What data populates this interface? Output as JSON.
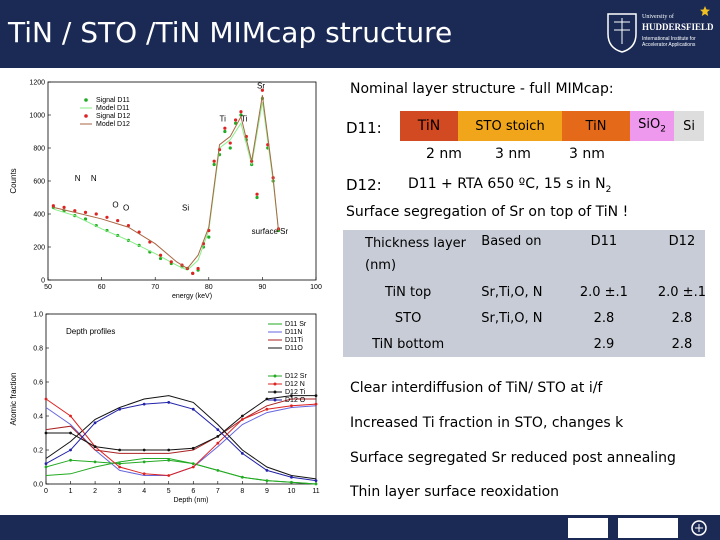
{
  "title": "TiN / STO /TiN MIMcap structure",
  "logo": {
    "line1": "University of",
    "line2": "HUDDERSFIELD",
    "line3": "International Institute for Accelerator Applications"
  },
  "nominal": {
    "heading": "Nominal layer structure - full MIMcap:",
    "d11_label": "D11:",
    "d12_label": "D12:",
    "layers": [
      "TiN",
      "STO stoich",
      "TiN",
      "SiO",
      "Si"
    ],
    "sio2_sub": "2",
    "thicknesses": [
      "2 nm",
      "3 nm",
      "3 nm"
    ],
    "d12_desc": "D11 + RTA 650 ºC, 15 s in N",
    "d12_sub": "2",
    "segregation": "Surface segregation of Sr on top of TiN !"
  },
  "table": {
    "headers": [
      "Thickness layer (nm)",
      "Based on",
      "D11",
      "D12"
    ],
    "rows": [
      [
        "TiN top",
        "Sr,Ti,O, N",
        "2.0 ±.1",
        "2.0 ±.1"
      ],
      [
        "STO",
        "Sr,Ti,O, N",
        "2.8",
        "2.8"
      ],
      [
        "TiN bottom",
        "",
        "2.9",
        "2.8"
      ]
    ]
  },
  "bullets": [
    "Clear interdiffusion of TiN/ STO at i/f",
    "Increased Ti fraction in STO, changes k",
    "Surface segregated Sr reduced post annealing",
    "Thin layer surface reoxidation"
  ],
  "chart_data": [
    {
      "type": "scatter",
      "xlabel": "energy (keV)",
      "ylabel": "Counts",
      "xlim": [
        50,
        100
      ],
      "ylim": [
        0,
        1200
      ],
      "xticks": [
        50,
        60,
        70,
        80,
        90,
        100
      ],
      "yticks": [
        0,
        200,
        400,
        600,
        800,
        1000,
        1200
      ],
      "legend": [
        "Signal D11",
        "Model D11",
        "Signal D12",
        "Model D12"
      ],
      "legend_position": "top-left",
      "annotations": [
        "N",
        "N",
        "O",
        "O",
        "Si",
        "Ti",
        "Ti",
        "Sr",
        "surface Sr"
      ],
      "series": [
        {
          "name": "Signal D11",
          "color": "#22aa22",
          "x": [
            51,
            53,
            55,
            57,
            59,
            61,
            63,
            65,
            67,
            69,
            71,
            73,
            75,
            76,
            77,
            78,
            79,
            80,
            81,
            82,
            83,
            84,
            85,
            86,
            87,
            88,
            89,
            90,
            91,
            92,
            93
          ],
          "y": [
            440,
            420,
            390,
            370,
            330,
            300,
            270,
            240,
            210,
            170,
            130,
            100,
            80,
            70,
            40,
            60,
            200,
            260,
            700,
            760,
            900,
            800,
            950,
            1000,
            850,
            700,
            500,
            1100,
            800,
            600,
            300
          ]
        },
        {
          "name": "Model D11",
          "color": "#88ee88",
          "x": [
            51,
            55,
            60,
            65,
            70,
            74,
            76,
            78,
            80,
            82,
            84,
            86,
            88,
            90,
            92,
            93
          ],
          "y": [
            430,
            390,
            310,
            240,
            160,
            90,
            60,
            120,
            300,
            800,
            850,
            950,
            700,
            1080,
            600,
            300
          ]
        },
        {
          "name": "Signal D12",
          "color": "#dd2222",
          "x": [
            51,
            53,
            55,
            57,
            59,
            61,
            63,
            65,
            67,
            69,
            71,
            73,
            75,
            76,
            77,
            78,
            79,
            80,
            81,
            82,
            83,
            84,
            85,
            86,
            87,
            88,
            89,
            90,
            91,
            92,
            93
          ],
          "y": [
            450,
            440,
            420,
            410,
            400,
            380,
            360,
            330,
            290,
            230,
            150,
            110,
            90,
            70,
            40,
            70,
            220,
            300,
            720,
            790,
            920,
            830,
            970,
            1020,
            870,
            720,
            520,
            1150,
            820,
            620,
            310
          ]
        },
        {
          "name": "Model D12",
          "color": "#aa6644",
          "x": [
            51,
            55,
            60,
            65,
            70,
            74,
            76,
            78,
            80,
            82,
            84,
            86,
            88,
            90,
            92,
            93
          ],
          "y": [
            440,
            410,
            370,
            320,
            220,
            110,
            70,
            150,
            320,
            820,
            870,
            990,
            720,
            1120,
            620,
            300
          ]
        }
      ]
    },
    {
      "type": "line",
      "title": "Depth profiles",
      "xlabel": "Depth (nm)",
      "ylabel": "Atomic fraction",
      "xlim": [
        0,
        11
      ],
      "ylim": [
        0,
        1.0
      ],
      "xticks": [
        0,
        1,
        2,
        3,
        4,
        5,
        6,
        7,
        8,
        9,
        10,
        11
      ],
      "yticks": [
        0.0,
        0.2,
        0.4,
        0.6,
        0.8,
        1.0
      ],
      "legend_position": "top-right",
      "series": [
        {
          "name": "D11 Sr",
          "color": "#22aa22",
          "x": [
            0,
            1,
            2,
            3,
            4,
            5,
            6,
            7,
            8,
            9,
            10,
            11
          ],
          "y": [
            0.05,
            0.06,
            0.1,
            0.13,
            0.15,
            0.15,
            0.12,
            0.08,
            0.04,
            0.02,
            0.01,
            0.0
          ]
        },
        {
          "name": "D11N",
          "color": "#6666dd",
          "x": [
            0,
            1,
            2,
            3,
            4,
            5,
            6,
            7,
            8,
            9,
            10,
            11
          ],
          "y": [
            0.45,
            0.35,
            0.2,
            0.08,
            0.05,
            0.05,
            0.1,
            0.22,
            0.35,
            0.42,
            0.45,
            0.46
          ]
        },
        {
          "name": "D11Ti",
          "color": "#aa2222",
          "x": [
            0,
            1,
            2,
            3,
            4,
            5,
            6,
            7,
            8,
            9,
            10,
            11
          ],
          "y": [
            0.32,
            0.34,
            0.2,
            0.18,
            0.18,
            0.18,
            0.2,
            0.28,
            0.38,
            0.46,
            0.5,
            0.5
          ]
        },
        {
          "name": "D11O",
          "color": "#111111",
          "x": [
            0,
            1,
            2,
            3,
            4,
            5,
            6,
            7,
            8,
            9,
            10,
            11
          ],
          "y": [
            0.15,
            0.25,
            0.38,
            0.45,
            0.5,
            0.52,
            0.48,
            0.35,
            0.2,
            0.1,
            0.05,
            0.03
          ]
        },
        {
          "name": "D12 Sr",
          "color": "#22aa22",
          "x": [
            0,
            1,
            2,
            3,
            4,
            5,
            6,
            7,
            8,
            9,
            10,
            11
          ],
          "y": [
            0.1,
            0.14,
            0.13,
            0.12,
            0.13,
            0.14,
            0.12,
            0.08,
            0.04,
            0.02,
            0.01,
            0.0
          ]
        },
        {
          "name": "D12 N",
          "color": "#dd2222",
          "x": [
            0,
            1,
            2,
            3,
            4,
            5,
            6,
            7,
            8,
            9,
            10,
            11
          ],
          "y": [
            0.5,
            0.4,
            0.22,
            0.1,
            0.06,
            0.05,
            0.1,
            0.24,
            0.38,
            0.44,
            0.46,
            0.47
          ]
        },
        {
          "name": "D12 Ti",
          "color": "#111111",
          "x": [
            0,
            1,
            2,
            3,
            4,
            5,
            6,
            7,
            8,
            9,
            10,
            11
          ],
          "y": [
            0.3,
            0.3,
            0.22,
            0.2,
            0.2,
            0.2,
            0.21,
            0.28,
            0.4,
            0.5,
            0.52,
            0.52
          ]
        },
        {
          "name": "D12 O",
          "color": "#2222aa",
          "x": [
            0,
            1,
            2,
            3,
            4,
            5,
            6,
            7,
            8,
            9,
            10,
            11
          ],
          "y": [
            0.12,
            0.2,
            0.36,
            0.44,
            0.47,
            0.48,
            0.44,
            0.32,
            0.18,
            0.08,
            0.04,
            0.02
          ]
        }
      ]
    }
  ]
}
